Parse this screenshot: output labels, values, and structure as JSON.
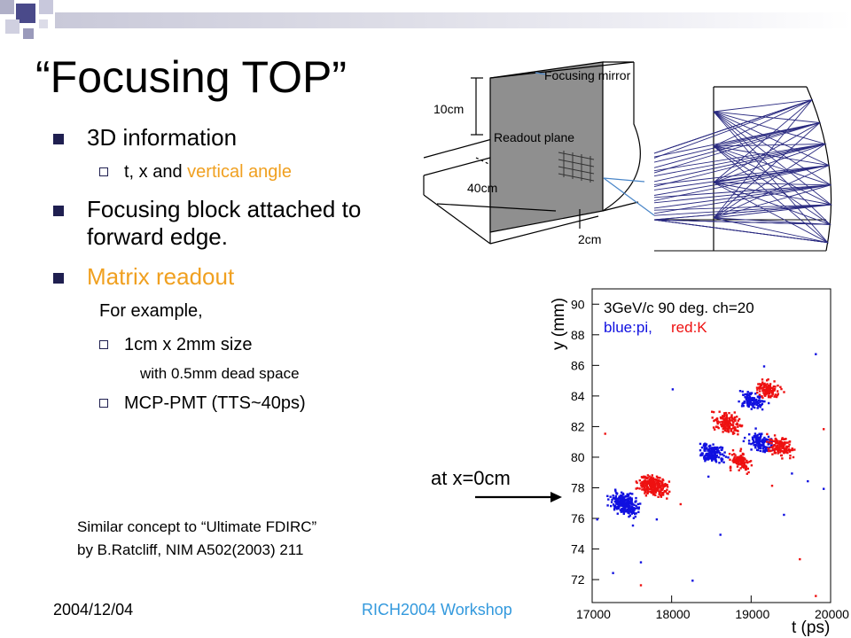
{
  "slide": {
    "title": "“Focusing TOP”",
    "bullets": [
      {
        "text": "3D information"
      },
      {
        "sub_prefix": "t, x and ",
        "sub_highlight": "vertical angle"
      },
      {
        "text": "Focusing block attached to forward edge."
      },
      {
        "text": "Matrix readout"
      },
      {
        "text": "For example,"
      },
      {
        "text": "1cm x 2mm size"
      },
      {
        "text": "with 0.5mm dead space"
      },
      {
        "text": "MCP-PMT (TTS~40ps)"
      }
    ],
    "similar_line1": "Similar concept to “Ultimate FDIRC”",
    "similar_line2": "by B.Ratcliff, NIM A502(2003) 211",
    "footer_date": "2004/12/04",
    "footer_workshop": "RICH2004 Workshop",
    "at_label": "at x=0cm"
  },
  "diagram": {
    "mirror_label": "Focusing mirror",
    "readout_label": "Readout plane",
    "dim_10cm": "10cm",
    "dim_40cm": "40cm",
    "dim_2cm": "2cm"
  },
  "colors": {
    "accent": "#f0a020",
    "workshop": "#3399dd",
    "marker": "#1f1f50",
    "ray": "#2a2a80",
    "pi": "#1010e0",
    "k": "#ee1111"
  },
  "chart_data": {
    "type": "scatter",
    "annotation_line1": "3GeV/c 90 deg.  ch=20",
    "legend_pi": "blue:pi,",
    "legend_k": "red:K",
    "xlabel": "t (ps)",
    "ylabel": "y (mm)",
    "xlim": [
      17000,
      20000
    ],
    "ylim": [
      70.5,
      91
    ],
    "x_ticks": [
      "17000",
      "18000",
      "19000",
      "20000"
    ],
    "y_ticks": [
      "72",
      "74",
      "76",
      "78",
      "80",
      "82",
      "84",
      "86",
      "88",
      "90"
    ],
    "clusters": [
      {
        "series": "pi",
        "x": 17400,
        "y": 77.0,
        "sx": 120,
        "sy": 0.45,
        "n": 260,
        "slope": -0.0011
      },
      {
        "series": "k",
        "x": 17750,
        "y": 78.2,
        "sx": 120,
        "sy": 0.45,
        "n": 260,
        "slope": -0.0011
      },
      {
        "series": "pi",
        "x": 18500,
        "y": 80.3,
        "sx": 110,
        "sy": 0.45,
        "n": 150,
        "slope": -0.001
      },
      {
        "series": "k",
        "x": 18850,
        "y": 79.8,
        "sx": 100,
        "sy": 0.4,
        "n": 110,
        "slope": -0.001
      },
      {
        "series": "k",
        "x": 18700,
        "y": 82.3,
        "sx": 120,
        "sy": 0.45,
        "n": 150,
        "slope": -0.001
      },
      {
        "series": "pi",
        "x": 19100,
        "y": 81.0,
        "sx": 110,
        "sy": 0.45,
        "n": 120,
        "slope": -0.001
      },
      {
        "series": "k",
        "x": 19350,
        "y": 80.8,
        "sx": 120,
        "sy": 0.45,
        "n": 130,
        "slope": -0.001
      },
      {
        "series": "pi",
        "x": 19000,
        "y": 83.8,
        "sx": 110,
        "sy": 0.4,
        "n": 110,
        "slope": -0.001
      },
      {
        "series": "k",
        "x": 19200,
        "y": 84.5,
        "sx": 110,
        "sy": 0.4,
        "n": 110,
        "slope": -0.001
      }
    ],
    "sparse_points": [
      {
        "series": "pi",
        "x": 17250,
        "y": 72.5
      },
      {
        "series": "pi",
        "x": 17600,
        "y": 73.2
      },
      {
        "series": "k",
        "x": 17600,
        "y": 71.7
      },
      {
        "series": "pi",
        "x": 18250,
        "y": 72.0
      },
      {
        "series": "pi",
        "x": 17500,
        "y": 75.6
      },
      {
        "series": "k",
        "x": 17150,
        "y": 81.6
      },
      {
        "series": "pi",
        "x": 19500,
        "y": 79.0
      },
      {
        "series": "pi",
        "x": 19700,
        "y": 78.5
      },
      {
        "series": "k",
        "x": 19250,
        "y": 78.2
      },
      {
        "series": "pi",
        "x": 19800,
        "y": 86.8
      },
      {
        "series": "pi",
        "x": 19900,
        "y": 78.0
      },
      {
        "series": "k",
        "x": 19800,
        "y": 71.0
      },
      {
        "series": "pi",
        "x": 18600,
        "y": 75.0
      },
      {
        "series": "pi",
        "x": 19400,
        "y": 76.3
      },
      {
        "series": "k",
        "x": 19600,
        "y": 73.4
      },
      {
        "series": "pi",
        "x": 17050,
        "y": 76.0
      },
      {
        "series": "pi",
        "x": 18000,
        "y": 84.5
      },
      {
        "series": "k",
        "x": 18100,
        "y": 77.0
      },
      {
        "series": "pi",
        "x": 19150,
        "y": 86.0
      },
      {
        "series": "k",
        "x": 19900,
        "y": 81.9
      },
      {
        "series": "pi",
        "x": 17800,
        "y": 76.0
      },
      {
        "series": "pi",
        "x": 18450,
        "y": 78.8
      }
    ]
  }
}
